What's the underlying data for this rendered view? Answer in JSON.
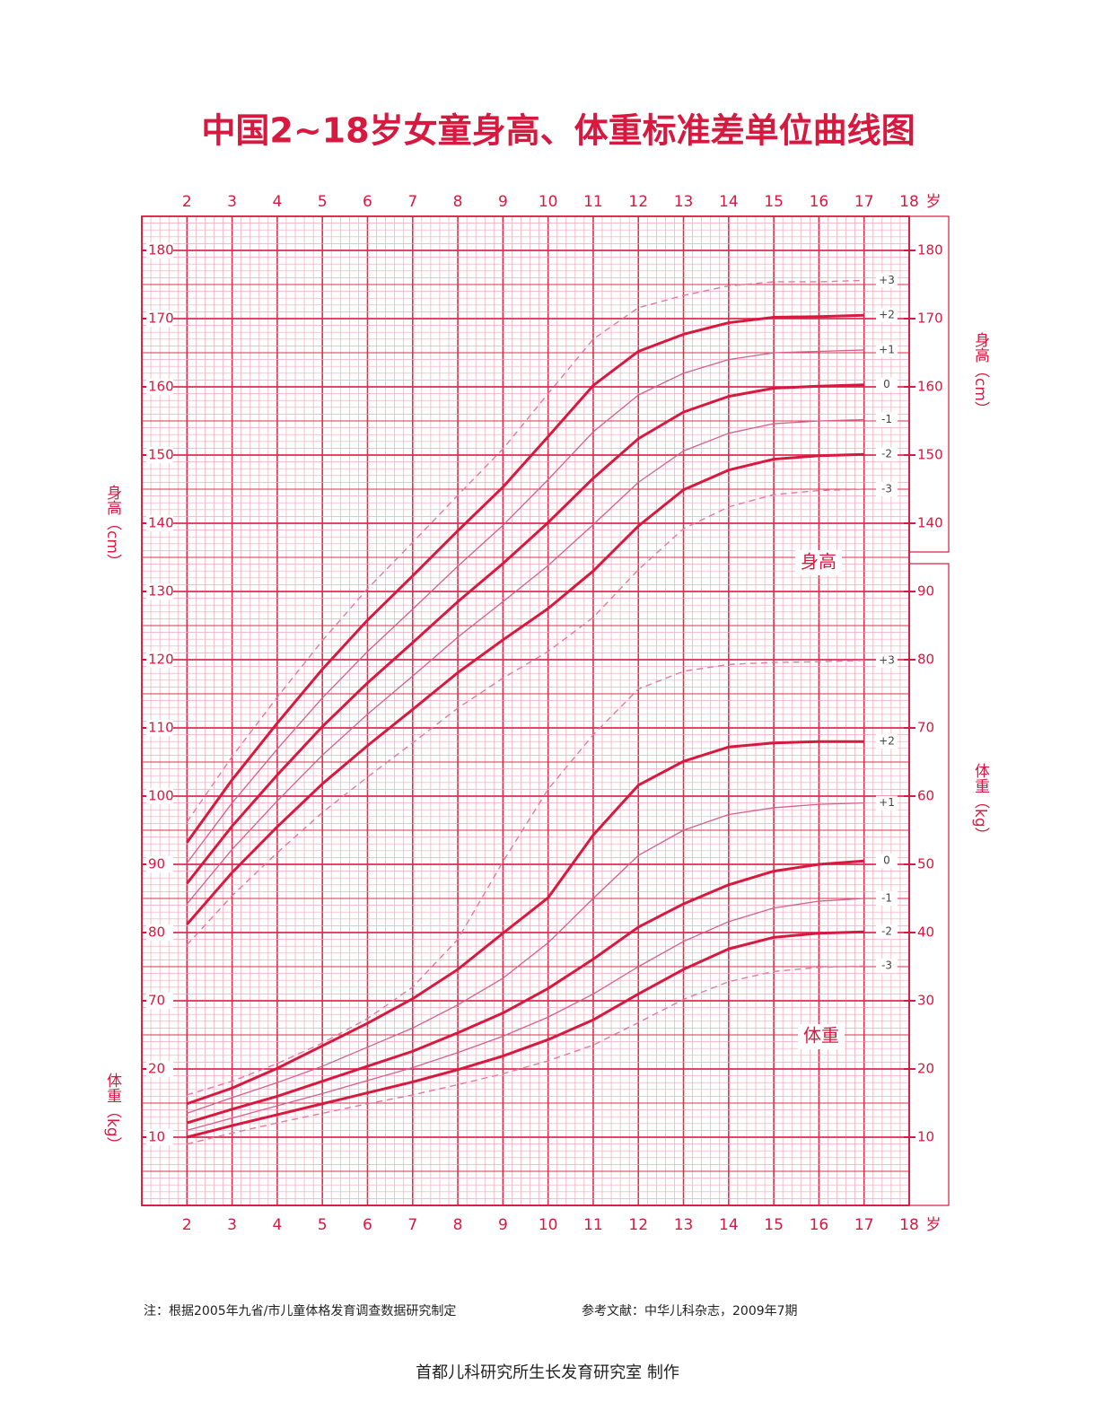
{
  "chart_data": {
    "type": "line",
    "title": "中国2~18岁女童身高、体重标准差单位曲线图",
    "x_unit": "岁",
    "y_label": "身高（cm）",
    "y2_label": "体重（kg）",
    "annotations": [
      "身高",
      "体重"
    ],
    "xlim": [
      1,
      18
    ],
    "xticks": [
      2,
      3,
      4,
      5,
      6,
      7,
      8,
      9,
      10,
      11,
      12,
      13,
      14,
      15,
      16,
      17,
      18
    ],
    "ylim": [
      40,
      185
    ],
    "yticks": [
      70,
      80,
      90,
      100,
      110,
      120,
      130,
      140,
      150,
      160,
      170,
      180
    ],
    "yticks_right": [
      140,
      150,
      160,
      170,
      180
    ],
    "y2lim": [
      0,
      145
    ],
    "y2ticks": [
      10,
      20,
      30,
      40,
      50,
      60,
      70,
      80,
      90
    ],
    "y2ticks_left": [
      10,
      20
    ],
    "grid": true,
    "x": [
      2,
      3,
      4,
      5,
      6,
      7,
      8,
      9,
      10,
      11,
      12,
      13,
      14,
      15,
      16,
      17
    ],
    "series": [
      {
        "name": "+3",
        "style": "dashed",
        "color": "#e27aa0",
        "values": [
          96.2,
          105.8,
          114.5,
          122.8,
          130.4,
          137.2,
          144.1,
          150.9,
          159.0,
          167.0,
          171.6,
          173.4,
          174.8,
          175.4,
          175.4,
          175.6
        ]
      },
      {
        "name": "+2",
        "style": "bold",
        "color": "#d7193f",
        "values": [
          93.2,
          102.4,
          110.7,
          118.6,
          125.8,
          132.3,
          138.9,
          145.3,
          152.7,
          160.2,
          165.2,
          167.7,
          169.4,
          170.2,
          170.3,
          170.5
        ]
      },
      {
        "name": "+1",
        "style": "thin",
        "color": "#d4608c",
        "values": [
          90.2,
          99.0,
          106.9,
          114.4,
          121.2,
          127.4,
          133.7,
          139.7,
          146.4,
          153.4,
          158.8,
          162.0,
          164.0,
          165.0,
          165.2,
          165.4
        ]
      },
      {
        "name": "0",
        "style": "bold",
        "color": "#d7193f",
        "values": [
          87.2,
          95.6,
          103.1,
          110.2,
          116.6,
          122.5,
          128.5,
          134.1,
          140.1,
          146.6,
          152.4,
          156.3,
          158.6,
          159.8,
          160.1,
          160.3
        ]
      },
      {
        "name": "-1",
        "style": "thin",
        "color": "#d4608c",
        "values": [
          84.2,
          92.2,
          99.3,
          106.0,
          112.0,
          117.6,
          123.3,
          128.5,
          133.8,
          139.8,
          146.0,
          150.6,
          153.2,
          154.6,
          155.0,
          155.2
        ]
      },
      {
        "name": "-2",
        "style": "bold",
        "color": "#d7193f",
        "values": [
          81.2,
          88.8,
          95.5,
          101.8,
          107.4,
          112.7,
          118.1,
          122.9,
          127.5,
          133.0,
          139.6,
          144.9,
          147.8,
          149.4,
          149.9,
          150.1
        ]
      },
      {
        "name": "-3",
        "style": "dashed",
        "color": "#e27aa0",
        "values": [
          78.2,
          85.4,
          91.7,
          97.6,
          102.8,
          107.8,
          112.9,
          117.3,
          121.2,
          126.2,
          133.2,
          139.2,
          142.4,
          144.2,
          144.8,
          145.0
        ]
      },
      {
        "name": "+3",
        "axis": "y2",
        "style": "dashed",
        "color": "#e27aa0",
        "values": [
          16.2,
          18.2,
          20.8,
          23.8,
          27.4,
          32.0,
          39.0,
          50.4,
          61.0,
          69.0,
          75.7,
          78.3,
          79.3,
          79.6,
          79.7,
          79.9
        ]
      },
      {
        "name": "+2",
        "axis": "y2",
        "style": "bold",
        "color": "#d7193f",
        "values": [
          14.9,
          17.2,
          20.1,
          23.4,
          26.7,
          30.3,
          34.6,
          39.9,
          45.1,
          54.3,
          61.6,
          65.1,
          67.2,
          67.8,
          68.0,
          68.0
        ]
      },
      {
        "name": "+1",
        "axis": "y2",
        "style": "thin",
        "color": "#d4608c",
        "values": [
          13.5,
          15.8,
          18.0,
          20.4,
          23.2,
          26.0,
          29.4,
          33.3,
          38.5,
          45.0,
          51.3,
          55.0,
          57.3,
          58.3,
          58.8,
          59.0
        ]
      },
      {
        "name": "0",
        "axis": "y2",
        "style": "bold",
        "color": "#d7193f",
        "values": [
          12.1,
          14.1,
          16.0,
          18.2,
          20.4,
          22.6,
          25.3,
          28.2,
          31.8,
          36.1,
          40.8,
          44.2,
          47.0,
          49.0,
          50.0,
          50.5
        ]
      },
      {
        "name": "-1",
        "axis": "y2",
        "style": "thin",
        "color": "#d4608c",
        "values": [
          11.0,
          12.8,
          14.6,
          16.4,
          18.3,
          20.2,
          22.4,
          24.8,
          27.6,
          31.0,
          35.0,
          38.7,
          41.6,
          43.6,
          44.6,
          45.0
        ]
      },
      {
        "name": "-2",
        "axis": "y2",
        "style": "bold",
        "color": "#d7193f",
        "values": [
          10.0,
          11.7,
          13.3,
          14.9,
          16.5,
          18.1,
          19.9,
          21.9,
          24.3,
          27.2,
          31.0,
          34.6,
          37.6,
          39.3,
          39.9,
          40.1
        ]
      },
      {
        "name": "-3",
        "axis": "y2",
        "style": "dashed",
        "color": "#e27aa0",
        "values": [
          9.0,
          10.6,
          12.1,
          13.5,
          14.9,
          16.2,
          17.7,
          19.3,
          21.2,
          23.5,
          26.8,
          30.2,
          32.8,
          34.3,
          34.9,
          35.1
        ]
      }
    ]
  },
  "footer": {
    "note": "注：根据2005年九省/市儿童体格发育调查数据研究制定",
    "reference": "参考文献：中华儿科杂志，2009年7期",
    "credit": "首都儿科研究所生长发育研究室 制作"
  }
}
